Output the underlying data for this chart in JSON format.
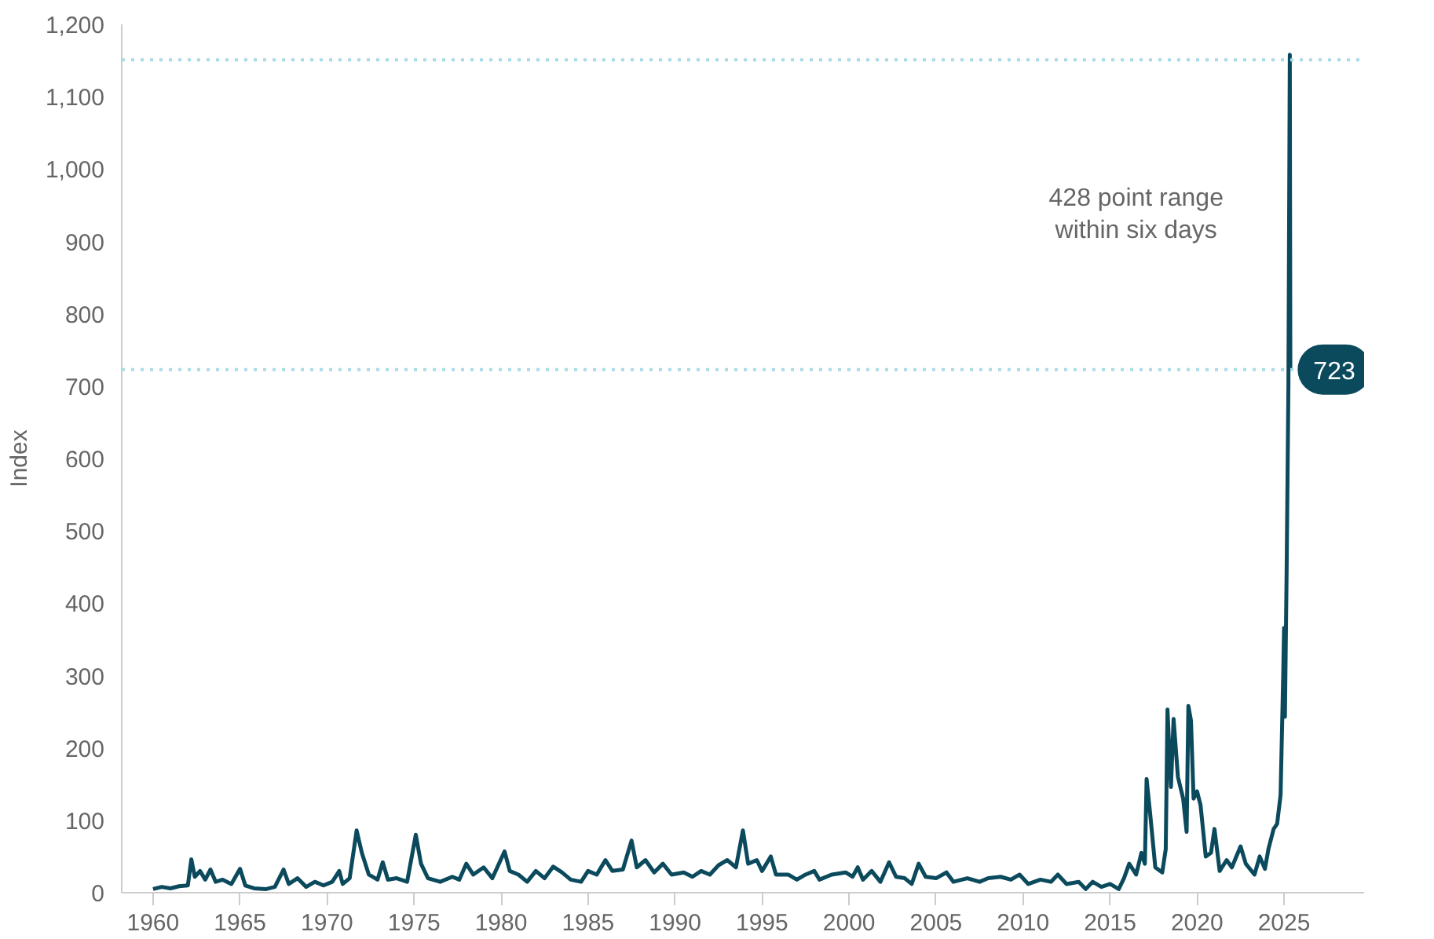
{
  "chart_data": {
    "type": "line",
    "ylabel": "Index",
    "x": [
      1960.0,
      1960.5,
      1961.0,
      1961.5,
      1962.0,
      1962.2,
      1962.4,
      1962.7,
      1963.0,
      1963.3,
      1963.6,
      1964.0,
      1964.5,
      1965.0,
      1965.3,
      1965.8,
      1966.5,
      1967.0,
      1967.5,
      1967.8,
      1968.3,
      1968.8,
      1969.3,
      1969.8,
      1970.3,
      1970.7,
      1970.9,
      1971.3,
      1971.7,
      1972.0,
      1972.4,
      1972.9,
      1973.2,
      1973.5,
      1974.0,
      1974.6,
      1975.1,
      1975.4,
      1975.8,
      1976.5,
      1977.2,
      1977.6,
      1978.0,
      1978.4,
      1979.0,
      1979.5,
      1980.2,
      1980.5,
      1981.0,
      1981.5,
      1982.0,
      1982.5,
      1983.0,
      1983.5,
      1984.0,
      1984.6,
      1985.0,
      1985.5,
      1986.0,
      1986.4,
      1987.0,
      1987.5,
      1987.8,
      1988.3,
      1988.8,
      1989.3,
      1989.8,
      1990.5,
      1991.0,
      1991.5,
      1992.0,
      1992.5,
      1993.0,
      1993.5,
      1993.9,
      1994.2,
      1994.7,
      1995.0,
      1995.5,
      1995.8,
      1996.5,
      1997.0,
      1997.5,
      1998.0,
      1998.3,
      1999.0,
      1999.8,
      2000.2,
      2000.5,
      2000.8,
      2001.3,
      2001.8,
      2002.3,
      2002.7,
      2003.2,
      2003.6,
      2004.0,
      2004.4,
      2005.0,
      2005.6,
      2006.0,
      2006.8,
      2007.5,
      2008.0,
      2008.7,
      2009.3,
      2009.8,
      2010.3,
      2011.0,
      2011.6,
      2012.0,
      2012.5,
      2013.2,
      2013.6,
      2014.0,
      2014.5,
      2015.0,
      2015.5,
      2015.8,
      2016.1,
      2016.5,
      2016.8,
      2017.0,
      2017.1,
      2017.3,
      2017.6,
      2018.0,
      2018.2,
      2018.3,
      2018.5,
      2018.65,
      2018.9,
      2019.2,
      2019.4,
      2019.5,
      2019.65,
      2019.8,
      2020.0,
      2020.2,
      2020.5,
      2020.8,
      2021.0,
      2021.3,
      2021.7,
      2022.0,
      2022.5,
      2022.8,
      2023.3,
      2023.6,
      2023.9,
      2024.1,
      2024.4,
      2024.6,
      2024.8,
      2024.95,
      2025.0,
      2025.05,
      2025.15,
      2025.25,
      2025.33,
      2025.36
    ],
    "series": [
      {
        "color": "#0b4a5c",
        "values": [
          5,
          8,
          6,
          9,
          10,
          46,
          22,
          30,
          18,
          32,
          15,
          18,
          12,
          33,
          10,
          6,
          5,
          8,
          32,
          12,
          20,
          8,
          15,
          10,
          15,
          30,
          12,
          20,
          86,
          55,
          25,
          18,
          42,
          18,
          20,
          15,
          80,
          40,
          20,
          15,
          22,
          18,
          40,
          25,
          35,
          20,
          57,
          30,
          25,
          15,
          30,
          20,
          36,
          28,
          18,
          15,
          30,
          25,
          45,
          30,
          32,
          72,
          35,
          45,
          28,
          40,
          25,
          28,
          22,
          30,
          25,
          38,
          45,
          35,
          86,
          40,
          45,
          30,
          50,
          25,
          25,
          18,
          25,
          30,
          18,
          25,
          28,
          22,
          35,
          18,
          30,
          15,
          42,
          22,
          20,
          12,
          40,
          22,
          20,
          28,
          15,
          20,
          15,
          20,
          22,
          18,
          25,
          12,
          18,
          15,
          25,
          12,
          15,
          5,
          15,
          8,
          12,
          5,
          20,
          40,
          25,
          55,
          40,
          157,
          110,
          35,
          28,
          60,
          253,
          146,
          240,
          160,
          130,
          84,
          258,
          238,
          130,
          140,
          121,
          50,
          55,
          88,
          30,
          45,
          35,
          64,
          40,
          25,
          50,
          33,
          60,
          88,
          95,
          135,
          300,
          366,
          243,
          450,
          700,
          1158,
          723
        ]
      }
    ],
    "xlim": [
      1958.2,
      2029.6
    ],
    "xticks": [
      1960,
      1965,
      1970,
      1975,
      1980,
      1985,
      1990,
      1995,
      2000,
      2005,
      2010,
      2015,
      2020,
      2025
    ],
    "ylim": [
      0,
      1200
    ],
    "yticks": [
      0,
      {
        "value": 100,
        "label": "100"
      },
      200,
      300,
      400,
      500,
      600,
      700,
      800,
      900,
      {
        "value": 1000,
        "label": "1,000"
      },
      {
        "value": 1100,
        "label": "1,100"
      },
      {
        "value": 1200,
        "label": "1,200"
      }
    ],
    "grid": false,
    "line_style": "solid",
    "ref_lines": [
      {
        "axis": "y",
        "value": 1151,
        "label": null,
        "color": "#a8dce6",
        "line_style": "dotted"
      },
      {
        "axis": "y",
        "value": 723,
        "label": null,
        "color": "#a8dce6",
        "line_style": "dotted"
      }
    ],
    "annotations": [
      "428 point range\nwithin six days",
      {
        "text": "723",
        "x": 2025.36,
        "y": 723
      }
    ]
  }
}
